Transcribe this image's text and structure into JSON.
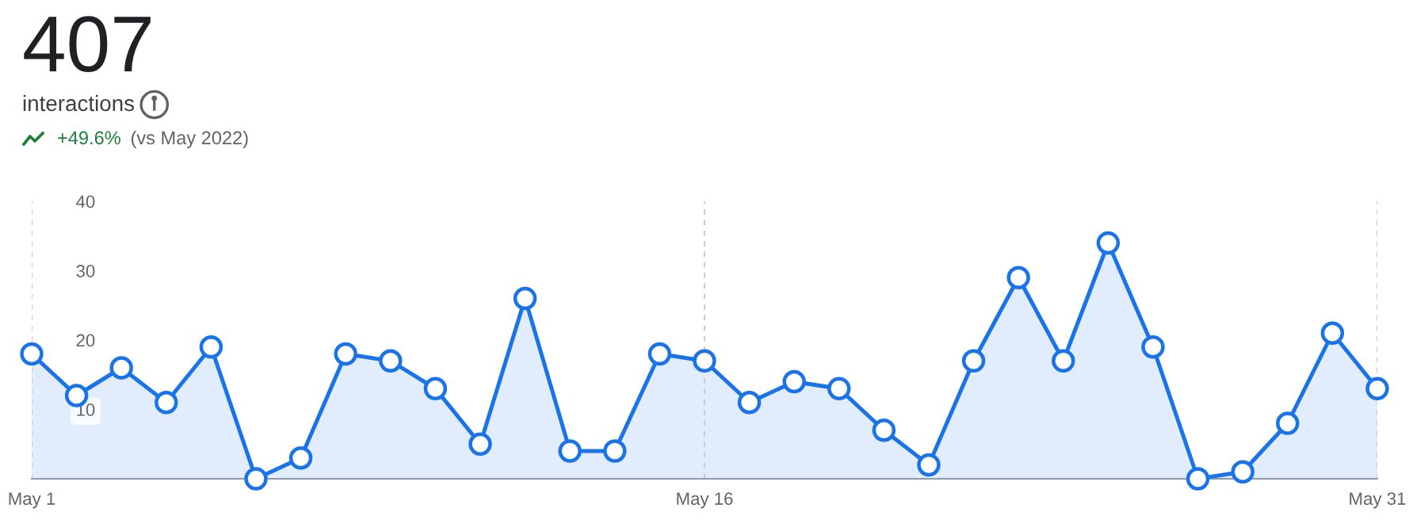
{
  "chart_data": {
    "type": "area",
    "title": "407",
    "subtitle": "interactions",
    "annotations": [
      "+49.6%",
      "(vs May 2022)"
    ],
    "categories": [
      "May 1",
      null,
      null,
      null,
      null,
      null,
      null,
      null,
      null,
      null,
      null,
      null,
      null,
      null,
      null,
      "May 16",
      null,
      null,
      null,
      null,
      null,
      null,
      null,
      null,
      null,
      null,
      null,
      null,
      null,
      null,
      "May 31"
    ],
    "series": [
      {
        "color": "#1a73e8",
        "values": [
          18,
          12,
          16,
          11,
          19,
          0,
          3,
          18,
          17,
          13,
          5,
          26,
          4,
          4,
          18,
          17,
          11,
          14,
          13,
          7,
          2,
          17,
          29,
          17,
          34,
          19,
          0,
          1,
          8,
          21,
          13
        ]
      }
    ],
    "ylim": [
      0,
      40
    ],
    "yticks": [
      10,
      20,
      30,
      40
    ],
    "grid": "x",
    "marker": "circle",
    "line_style": "solid",
    "legend": false
  }
}
